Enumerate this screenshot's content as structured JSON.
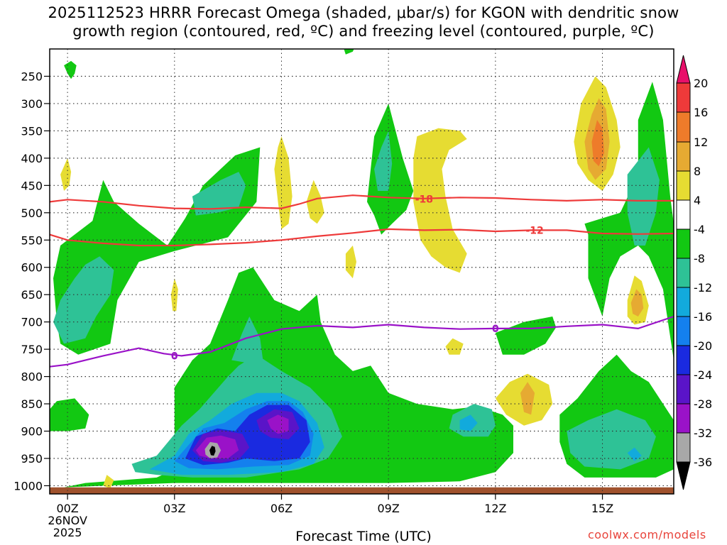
{
  "title": {
    "line1": "2025112523 HRRR Forecast Omega (shaded, μbar/s) for KGON with dendritic snow",
    "line2": "growth region (contoured, red, ºC) and freezing level (contoured, purple, ºC)"
  },
  "credit": "coolwx.com/models",
  "chart_data": {
    "type": "heatmap",
    "title": "2025112523 HRRR Forecast Omega (shaded, μbar/s) for KGON with dendritic snow growth region (contoured, red, ºC) and freezing level (contoured, purple, ºC)",
    "xlabel": "Forecast Time (UTC)",
    "ylabel": "",
    "x_range_hours": [
      -0.5,
      17
    ],
    "y_range_hpa": [
      1015,
      200
    ],
    "x_ticks": [
      {
        "hour": 0,
        "lines": [
          "00Z",
          "26NOV",
          "2025"
        ]
      },
      {
        "hour": 3,
        "lines": [
          "03Z"
        ]
      },
      {
        "hour": 6,
        "lines": [
          "06Z"
        ]
      },
      {
        "hour": 9,
        "lines": [
          "09Z"
        ]
      },
      {
        "hour": 12,
        "lines": [
          "12Z"
        ]
      },
      {
        "hour": 15,
        "lines": [
          "15Z"
        ]
      }
    ],
    "y_ticks": [
      250,
      300,
      350,
      400,
      450,
      500,
      550,
      600,
      650,
      700,
      750,
      800,
      850,
      900,
      950,
      1000
    ],
    "grid": true,
    "colorbar": {
      "labels": [
        "20",
        "16",
        "12",
        "8",
        "4",
        "-4",
        "-8",
        "-12",
        "-16",
        "-20",
        "-24",
        "-28",
        "-32",
        "-36"
      ],
      "bins": [
        {
          "color": "#e8106a"
        },
        {
          "color": "#ee3a3a"
        },
        {
          "color": "#ee7b2a"
        },
        {
          "color": "#e6aa32"
        },
        {
          "color": "#e6dc32"
        },
        {
          "color": "#ffffff"
        },
        {
          "color": "#12c812"
        },
        {
          "color": "#2ec296"
        },
        {
          "color": "#12aadc"
        },
        {
          "color": "#1480ee"
        },
        {
          "color": "#1a2ae0"
        },
        {
          "color": "#5a14c8"
        },
        {
          "color": "#9a12c8"
        },
        {
          "color": "#a8a8a8"
        },
        {
          "color": "#000000"
        }
      ]
    },
    "ground": {
      "color": "#a0522d"
    },
    "contours": [
      {
        "name": "-18",
        "color": "#ee3a3a",
        "label": "-18",
        "label_at": {
          "hour": 10.0,
          "p": 475
        },
        "points": [
          [
            -0.5,
            480
          ],
          [
            0,
            476
          ],
          [
            1,
            480
          ],
          [
            2,
            487
          ],
          [
            3,
            492
          ],
          [
            4,
            493
          ],
          [
            5,
            490
          ],
          [
            6,
            492
          ],
          [
            6.5,
            484
          ],
          [
            7,
            474
          ],
          [
            8,
            468
          ],
          [
            9,
            472
          ],
          [
            10,
            474
          ],
          [
            11,
            472
          ],
          [
            12,
            473
          ],
          [
            13,
            476
          ],
          [
            14,
            478
          ],
          [
            15,
            476
          ],
          [
            16,
            478
          ],
          [
            17,
            478
          ]
        ]
      },
      {
        "name": "-12",
        "color": "#ee3a3a",
        "label": "-12",
        "label_at": {
          "hour": 13.1,
          "p": 532
        },
        "points": [
          [
            -0.5,
            540
          ],
          [
            0,
            550
          ],
          [
            1,
            556
          ],
          [
            2,
            560
          ],
          [
            3,
            560
          ],
          [
            4,
            558
          ],
          [
            5,
            555
          ],
          [
            6,
            550
          ],
          [
            7,
            543
          ],
          [
            8,
            537
          ],
          [
            9,
            530
          ],
          [
            10,
            532
          ],
          [
            11,
            531
          ],
          [
            12,
            534
          ],
          [
            13,
            532
          ],
          [
            14,
            532
          ],
          [
            15,
            538
          ],
          [
            16,
            539
          ],
          [
            17,
            538
          ]
        ]
      },
      {
        "name": "0",
        "color": "#9a12c8",
        "label": "0",
        "label_at": {
          "hour": 3.0,
          "p": 762
        },
        "points": [
          [
            -0.5,
            782
          ],
          [
            0,
            778
          ],
          [
            1,
            762
          ],
          [
            2,
            748
          ],
          [
            2.7,
            758
          ],
          [
            3.2,
            762
          ],
          [
            4,
            755
          ],
          [
            5,
            730
          ],
          [
            6,
            713
          ],
          [
            7,
            707
          ],
          [
            8,
            710
          ],
          [
            9,
            705
          ],
          [
            10,
            710
          ],
          [
            11,
            713
          ],
          [
            12,
            712
          ],
          [
            13,
            712
          ],
          [
            14,
            708
          ],
          [
            15,
            705
          ],
          [
            16,
            712
          ],
          [
            17,
            690
          ]
        ]
      },
      {
        "name": "0b",
        "color": "#9a12c8",
        "label": "0",
        "label_at": {
          "hour": 12.0,
          "p": 712
        },
        "points": []
      }
    ],
    "omega_regions": [
      {
        "bin": "-4 to -8",
        "hours": [
          -0.5,
          17
        ],
        "p_range": [
          250,
          1000
        ]
      },
      {
        "bin": "4 to 8",
        "hours": [
          9.7,
          10.8
        ],
        "p_range": [
          370,
          600
        ]
      },
      {
        "bin": "8 to 16",
        "hours": [
          14.8,
          15.2
        ],
        "p_range": [
          320,
          430
        ]
      },
      {
        "bin": "-32 to -36",
        "hours": [
          3.9,
          4.1
        ],
        "p_range": [
          910,
          945
        ]
      }
    ]
  }
}
